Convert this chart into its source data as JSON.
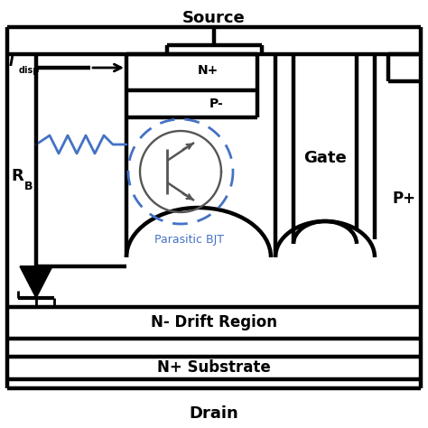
{
  "bg_color": "#ffffff",
  "black": "#000000",
  "blue": "#4472C4",
  "gray": "#555555",
  "lw_thick": 3.2,
  "lw_med": 2.0,
  "lw_thin": 1.5,
  "source_label": "Source",
  "gate_label": "Gate",
  "drain_label": "Drain",
  "nplus_label": "N+",
  "pminus_label": "P-",
  "pplus_label": "P+",
  "ndrift_label": "N- Drift Region",
  "nsub_label": "N+ Substrate",
  "idisp_I": "I",
  "idisp_sub": "disp",
  "rb_R": "R",
  "rb_sub": "B",
  "bjt_label": "Parasitic BJT"
}
